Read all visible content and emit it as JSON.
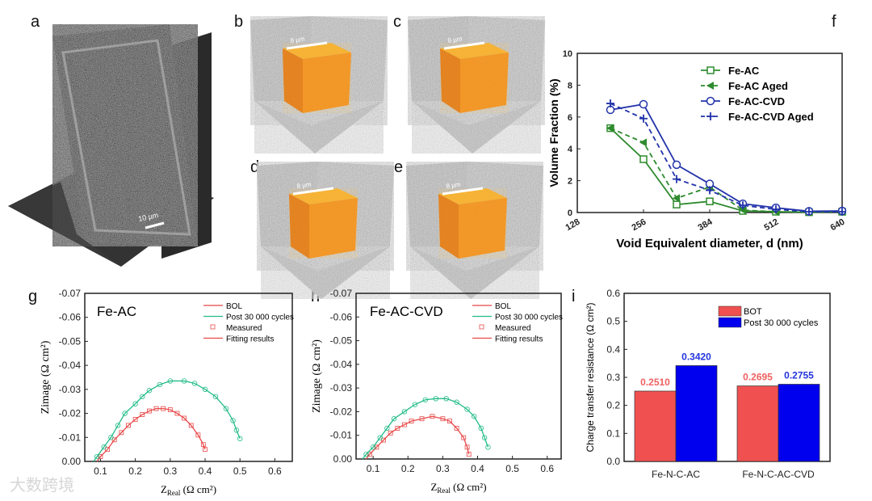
{
  "panel_labels": {
    "a": "a",
    "b": "b",
    "c": "c",
    "d": "d",
    "e": "e",
    "f": "f",
    "g": "g",
    "h": "h",
    "i": "i"
  },
  "images": {
    "a": {
      "scale_bar": "10 µm"
    },
    "b": {
      "scale_bar": "8 µm"
    },
    "c": {
      "scale_bar": "8 µm"
    },
    "d": {
      "scale_bar": "8 µm"
    },
    "e": {
      "scale_bar": "8 µm"
    }
  },
  "watermark": "大数跨境",
  "colors": {
    "green": "#2e8b2e",
    "blue": "#2233aa",
    "red": "#e84848",
    "teal": "#22bb88",
    "bar_red": "#f05050",
    "bar_blue": "#0000ee"
  },
  "chart_data": [
    {
      "id": "f",
      "type": "line",
      "xlabel": "Void Equivalent diameter, d (nm)",
      "ylabel": "Volume Fraction (%)",
      "xlim": [
        128,
        640
      ],
      "ylim": [
        0,
        10
      ],
      "xticks": [
        128,
        256,
        384,
        512,
        640
      ],
      "yticks": [
        0,
        2,
        4,
        6,
        8,
        10
      ],
      "legend": "top-right",
      "x": [
        192,
        256,
        320,
        384,
        448,
        512,
        576,
        640
      ],
      "series": [
        {
          "name": "Fe-AC",
          "color": "#2e8b2e",
          "dash": false,
          "marker": "square",
          "values": [
            5.3,
            3.35,
            0.5,
            0.7,
            0.1,
            0.05,
            0.02,
            0.05
          ]
        },
        {
          "name": "Fe-AC Aged",
          "color": "#2e8b2e",
          "dash": true,
          "marker": "triangle-left",
          "values": [
            5.3,
            4.4,
            0.9,
            1.6,
            0.15,
            0.05,
            0.02,
            0.05
          ]
        },
        {
          "name": "Fe-AC-CVD",
          "color": "#2233aa",
          "dash": false,
          "marker": "circle",
          "values": [
            6.45,
            6.8,
            3.0,
            1.8,
            0.55,
            0.3,
            0.08,
            0.1
          ]
        },
        {
          "name": "Fe-AC-CVD Aged",
          "color": "#2233aa",
          "dash": true,
          "marker": "plus",
          "values": [
            6.85,
            5.9,
            2.1,
            1.4,
            0.45,
            0.2,
            0.05,
            0.05
          ]
        }
      ]
    },
    {
      "id": "g",
      "type": "scatter",
      "title": "Fe-AC",
      "xlabel_main": "Z",
      "xlabel_sub": "Real",
      "xlabel_unit": " (Ω cm²)",
      "ylabel": "Zimage (Ω cm²)",
      "xlim": [
        0.055,
        0.65
      ],
      "ylim": [
        0,
        -0.07
      ],
      "xticks": [
        "0.1",
        "0.2",
        "0.3",
        "0.4",
        "0.5",
        "0.6"
      ],
      "yticks": [
        "0.00",
        "-0.01",
        "-0.02",
        "-0.03",
        "-0.04",
        "-0.05",
        "-0.06",
        "-0.07"
      ],
      "legend": [
        "BOL",
        "Post 30 000 cycles",
        "Measured",
        "Fitting results"
      ],
      "series": [
        {
          "name": "BOL",
          "color": "#e84848",
          "points": [
            [
              0.09,
              0
            ],
            [
              0.1,
              -0.002
            ],
            [
              0.12,
              -0.005
            ],
            [
              0.14,
              -0.009
            ],
            [
              0.16,
              -0.012
            ],
            [
              0.18,
              -0.015
            ],
            [
              0.2,
              -0.0175
            ],
            [
              0.22,
              -0.0195
            ],
            [
              0.24,
              -0.021
            ],
            [
              0.26,
              -0.022
            ],
            [
              0.28,
              -0.022
            ],
            [
              0.3,
              -0.0215
            ],
            [
              0.32,
              -0.02
            ],
            [
              0.34,
              -0.018
            ],
            [
              0.36,
              -0.015
            ],
            [
              0.38,
              -0.011
            ],
            [
              0.395,
              -0.007
            ],
            [
              0.4,
              -0.005
            ]
          ]
        },
        {
          "name": "Post 30 000 cycles",
          "color": "#22bb88",
          "points": [
            [
              0.08,
              0
            ],
            [
              0.09,
              -0.002
            ],
            [
              0.11,
              -0.006
            ],
            [
              0.13,
              -0.01
            ],
            [
              0.15,
              -0.015
            ],
            [
              0.17,
              -0.02
            ],
            [
              0.2,
              -0.024
            ],
            [
              0.22,
              -0.027
            ],
            [
              0.24,
              -0.0295
            ],
            [
              0.27,
              -0.032
            ],
            [
              0.3,
              -0.0335
            ],
            [
              0.34,
              -0.0335
            ],
            [
              0.37,
              -0.0325
            ],
            [
              0.4,
              -0.03
            ],
            [
              0.43,
              -0.027
            ],
            [
              0.46,
              -0.022
            ],
            [
              0.48,
              -0.017
            ],
            [
              0.49,
              -0.013
            ],
            [
              0.5,
              -0.0095
            ]
          ]
        }
      ]
    },
    {
      "id": "h",
      "type": "scatter",
      "title": "Fe-AC-CVD",
      "xlabel_main": "Z",
      "xlabel_sub": "Real",
      "xlabel_unit": " (Ω cm²)",
      "ylabel": "Zimage (Ω cm²)",
      "xlim": [
        0.051,
        0.64
      ],
      "ylim": [
        0,
        -0.07
      ],
      "xticks": [
        "0.1",
        "0.2",
        "0.3",
        "0.4",
        "0.5",
        "0.6"
      ],
      "yticks": [
        "0.00",
        "-0.01",
        "-0.02",
        "-0.03",
        "-0.04",
        "-0.05",
        "-0.06",
        "-0.07"
      ],
      "legend": [
        "BOL",
        "Post 30 000 cycles",
        "Measured",
        "Fitting results"
      ],
      "series": [
        {
          "name": "BOL",
          "color": "#e84848",
          "points": [
            [
              0.08,
              0
            ],
            [
              0.09,
              -0.002
            ],
            [
              0.11,
              -0.005
            ],
            [
              0.13,
              -0.008
            ],
            [
              0.15,
              -0.011
            ],
            [
              0.17,
              -0.013
            ],
            [
              0.19,
              -0.0145
            ],
            [
              0.21,
              -0.016
            ],
            [
              0.24,
              -0.017
            ],
            [
              0.27,
              -0.018
            ],
            [
              0.3,
              -0.017
            ],
            [
              0.32,
              -0.016
            ],
            [
              0.34,
              -0.013
            ],
            [
              0.36,
              -0.009
            ],
            [
              0.37,
              -0.005
            ],
            [
              0.375,
              -0.002
            ]
          ]
        },
        {
          "name": "Post 30 000 cycles",
          "color": "#22bb88",
          "points": [
            [
              0.07,
              0
            ],
            [
              0.08,
              -0.002
            ],
            [
              0.1,
              -0.005
            ],
            [
              0.12,
              -0.009
            ],
            [
              0.14,
              -0.013
            ],
            [
              0.16,
              -0.017
            ],
            [
              0.19,
              -0.02
            ],
            [
              0.22,
              -0.023
            ],
            [
              0.25,
              -0.025
            ],
            [
              0.28,
              -0.0255
            ],
            [
              0.31,
              -0.0255
            ],
            [
              0.34,
              -0.024
            ],
            [
              0.37,
              -0.021
            ],
            [
              0.39,
              -0.018
            ],
            [
              0.41,
              -0.013
            ],
            [
              0.42,
              -0.009
            ],
            [
              0.43,
              -0.005
            ]
          ]
        }
      ]
    },
    {
      "id": "i",
      "type": "bar",
      "ylabel": "Charge transfer resistance (Ω cm²)",
      "ylim": [
        0,
        0.6
      ],
      "yticks": [
        "0.0",
        "0.1",
        "0.2",
        "0.3",
        "0.4",
        "0.5",
        "0.6"
      ],
      "categories": [
        "Fe-N-C-AC",
        "Fe-N-C-AC-CVD"
      ],
      "legend": "top-right",
      "series": [
        {
          "name": "BOT",
          "color": "#f05050",
          "label_color": "#f06060",
          "values": [
            0.251,
            0.2695
          ],
          "labels": [
            "0.2510",
            "0.2695"
          ]
        },
        {
          "name": "Post 30 000 cycles",
          "color": "#0000ee",
          "label_color": "#2233dd",
          "values": [
            0.342,
            0.2755
          ],
          "labels": [
            "0.3420",
            "0.2755"
          ]
        }
      ]
    }
  ]
}
